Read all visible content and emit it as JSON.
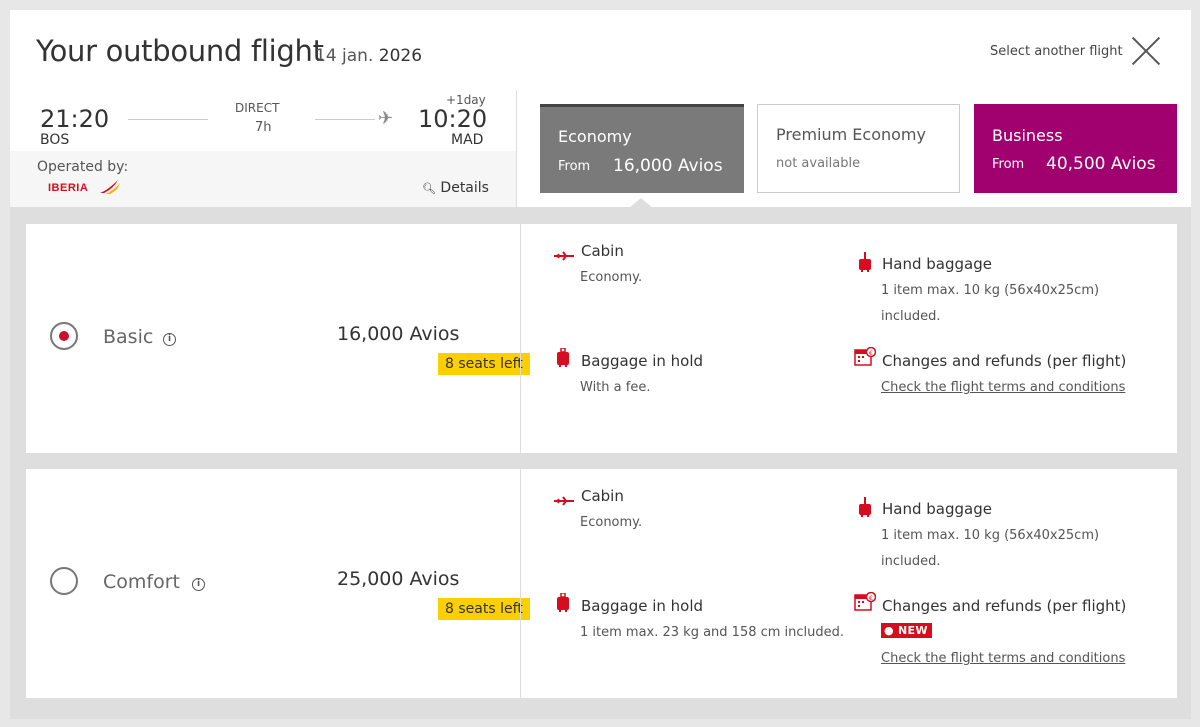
{
  "header": {
    "title": "Your outbound flight",
    "date_day": "14 jan.",
    "date_year": "2026",
    "select_another": "Select another flight"
  },
  "flight": {
    "depart_time": "21:20",
    "depart_airport": "BOS",
    "type": "DIRECT",
    "duration": "7h",
    "plus_day": "+1day",
    "arrive_time": "10:20",
    "arrive_airport": "MAD",
    "operated_by_label": "Operated by:",
    "operator_logo_text": "IBERIA",
    "details_label": "Details"
  },
  "cabins": {
    "economy": {
      "name": "Economy",
      "from_label": "From",
      "price": "16,000 Avios"
    },
    "premium": {
      "name": "Premium Economy",
      "status": "not available"
    },
    "business": {
      "name": "Business",
      "from_label": "From",
      "price": "40,500 Avios"
    }
  },
  "fares": [
    {
      "name": "Basic",
      "selected": true,
      "price": "16,000 Avios",
      "seats_left": "8 seats left",
      "cabin_title": "Cabin",
      "cabin_sub": "Economy.",
      "hold_title": "Baggage in hold",
      "hold_sub": "With a fee.",
      "hand_title": "Hand baggage",
      "hand_sub1": "1 item max. 10 kg (56x40x25cm)",
      "hand_sub2": "included.",
      "changes_title": "Changes and refunds (per flight)",
      "changes_link": "Check the flight terms and conditions"
    },
    {
      "name": "Comfort",
      "selected": false,
      "price": "25,000 Avios",
      "seats_left": "8 seats left",
      "cabin_title": "Cabin",
      "cabin_sub": "Economy.",
      "hold_title": "Baggage in hold",
      "hold_sub": "1 item max. 23 kg and 158 cm included.",
      "hand_title": "Hand baggage",
      "hand_sub1": "1 item max. 10 kg (56x40x25cm)",
      "hand_sub2": "included.",
      "changes_title": "Changes and refunds (per flight)",
      "new_badge": "NEW",
      "changes_link": "Check the flight terms and conditions"
    }
  ],
  "colors": {
    "iberia_red": "#d70c1f",
    "business_purple": "#a1016e",
    "economy_gray": "#7a7a7a",
    "seats_yellow": "#fccf00"
  }
}
